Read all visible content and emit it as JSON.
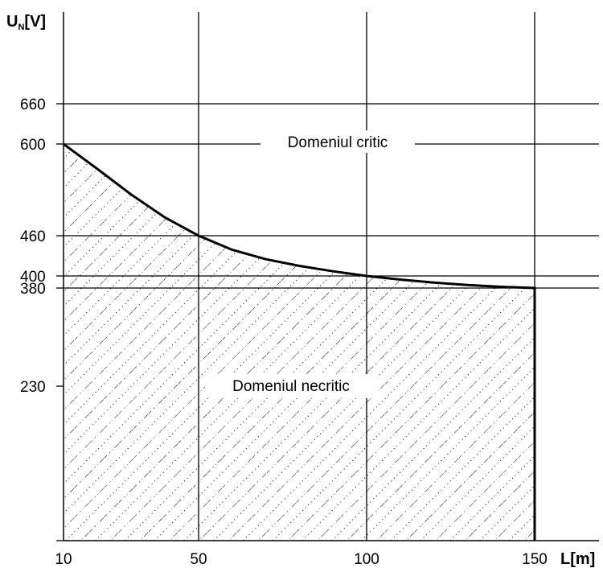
{
  "chart_data": {
    "type": "area",
    "ylabel": {
      "main": "U",
      "sub": "N",
      "unit": "[V]"
    },
    "xlabel": "L[m]",
    "x_ticks": [
      10,
      50,
      100,
      150
    ],
    "y_ticks": [
      230,
      380,
      400,
      460,
      600,
      660
    ],
    "xlim": [
      10,
      160
    ],
    "grid": true,
    "series": [
      {
        "x": [
          10,
          20,
          30,
          40,
          50,
          60,
          70,
          80,
          90,
          100,
          110,
          120,
          130,
          140,
          150
        ],
        "y": [
          600,
          562,
          523,
          488,
          460,
          439,
          425,
          415,
          407,
          400,
          394,
          389,
          385,
          382,
          380
        ]
      }
    ],
    "annotations": [
      {
        "text": "Domeniul critic",
        "x": 90,
        "y": 600
      },
      {
        "text": "Domeniul necritic",
        "x": 80,
        "y": 230
      }
    ]
  }
}
